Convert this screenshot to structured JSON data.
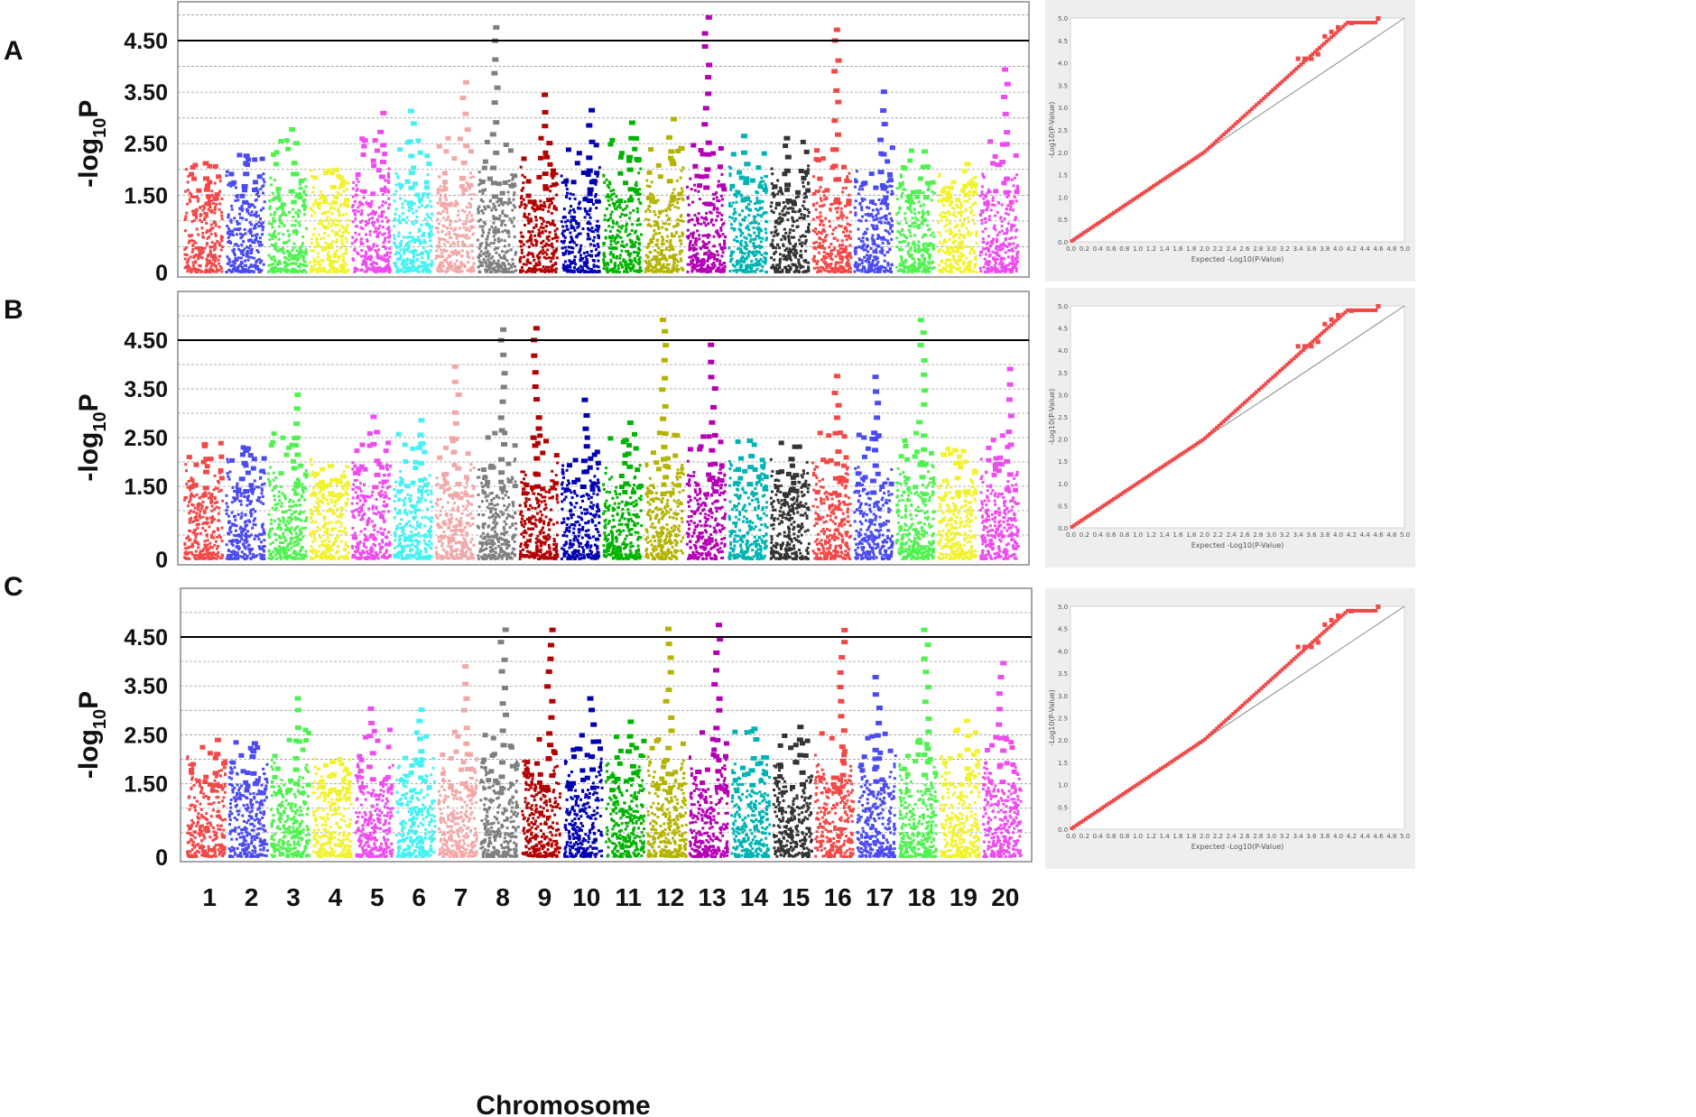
{
  "chart_data": {
    "type": "scatter",
    "panels": [
      {
        "label": "A",
        "manhattan": {
          "ylabel": "-log10P",
          "yticks": [
            "4.50",
            "3.50",
            "2.50",
            "1.50",
            "0"
          ],
          "ytick_values": [
            4.5,
            3.5,
            2.5,
            1.5,
            0
          ],
          "threshold": 4.5,
          "ylim": [
            0,
            5.2
          ]
        },
        "qq": {
          "xlabel": "Expected -Log10(P-Value)",
          "ylabel": "-Log10(P-Value)",
          "xlim": [
            0,
            5
          ],
          "ylim": [
            0,
            5
          ],
          "xticks": [
            "0.0",
            "0.2",
            "0.4",
            "0.6",
            "0.8",
            "1.0",
            "1.2",
            "1.4",
            "1.6",
            "1.8",
            "2.0",
            "2.2",
            "2.4",
            "2.6",
            "2.8",
            "3.0",
            "3.2",
            "3.4",
            "3.6",
            "3.8",
            "4.0",
            "4.2",
            "4.4",
            "4.6",
            "4.8",
            "5.0"
          ],
          "yticks": [
            "0.0",
            "0.5",
            "1.0",
            "1.5",
            "2.0",
            "2.5",
            "3.0",
            "3.5",
            "4.0",
            "4.5",
            "5.0"
          ]
        }
      },
      {
        "label": "B",
        "manhattan": {
          "ylabel": "-log10P",
          "yticks": [
            "4.50",
            "3.50",
            "2.50",
            "1.50",
            "0"
          ],
          "ytick_values": [
            4.5,
            3.5,
            2.5,
            1.5,
            0
          ],
          "threshold": 4.5,
          "ylim": [
            0,
            5.2
          ]
        },
        "qq": {
          "xlabel": "Expected -Log10(P-Value)",
          "ylabel": "-Log10(P-Value)",
          "xlim": [
            0,
            5
          ],
          "ylim": [
            0,
            5
          ],
          "xticks": [
            "0.0",
            "0.2",
            "0.4",
            "0.6",
            "0.8",
            "1.0",
            "1.2",
            "1.4",
            "1.6",
            "1.8",
            "2.0",
            "2.2",
            "2.4",
            "2.6",
            "2.8",
            "3.0",
            "3.2",
            "3.4",
            "3.6",
            "3.8",
            "4.0",
            "4.2",
            "4.4",
            "4.6",
            "4.8",
            "5.0"
          ],
          "yticks": [
            "0.0",
            "0.5",
            "1.0",
            "1.5",
            "2.0",
            "2.5",
            "3.0",
            "3.5",
            "4.0",
            "4.5",
            "5.0"
          ]
        }
      },
      {
        "label": "C",
        "manhattan": {
          "ylabel": "-log10P",
          "yticks": [
            "4.50",
            "3.50",
            "2.50",
            "1.50",
            "0"
          ],
          "ytick_values": [
            4.5,
            3.5,
            2.5,
            1.5,
            0
          ],
          "threshold": 4.5,
          "ylim": [
            0,
            5.2
          ]
        },
        "qq": {
          "xlabel": "Expected -Log10(P-Value)",
          "ylabel": "-Log10(P-Value)",
          "xlim": [
            0,
            5
          ],
          "ylim": [
            0,
            5
          ],
          "xticks": [
            "0.0",
            "0.2",
            "0.4",
            "0.6",
            "0.8",
            "1.0",
            "1.2",
            "1.4",
            "1.6",
            "1.8",
            "2.0",
            "2.2",
            "2.4",
            "2.6",
            "2.8",
            "3.0",
            "3.2",
            "3.4",
            "3.6",
            "3.8",
            "4.0",
            "4.2",
            "4.4",
            "4.6",
            "4.8",
            "5.0"
          ],
          "yticks": [
            "0.0",
            "0.5",
            "1.0",
            "1.5",
            "2.0",
            "2.5",
            "3.0",
            "3.5",
            "4.0",
            "4.5",
            "5.0"
          ]
        }
      }
    ],
    "chromosomes": [
      "1",
      "2",
      "3",
      "4",
      "5",
      "6",
      "7",
      "8",
      "9",
      "10",
      "11",
      "12",
      "13",
      "14",
      "15",
      "16",
      "17",
      "18",
      "19",
      "20"
    ],
    "chromosome_colors": [
      "#f24848",
      "#4b4bf2",
      "#4ff24f",
      "#f2f22e",
      "#ef4cef",
      "#45f2f2",
      "#f2a8a8",
      "#7f7f7f",
      "#b30000",
      "#0000b3",
      "#00b300",
      "#b3b300",
      "#b300b3",
      "#00b3b3",
      "#333333",
      "#f24848",
      "#4b4bf2",
      "#4ff24f",
      "#f2f22e",
      "#ef4cef"
    ],
    "peaks": [
      [
        2.2,
        2.3,
        2.8,
        2.0,
        3.1,
        3.2,
        3.7,
        4.8,
        3.5,
        3.2,
        2.9,
        3.0,
        5.0,
        2.7,
        2.6,
        4.8,
        3.5,
        2.4,
        2.1,
        4.0
      ],
      [
        2.4,
        2.3,
        3.4,
        2.0,
        3.0,
        2.9,
        4.0,
        4.8,
        4.8,
        3.3,
        2.8,
        5.0,
        4.4,
        2.5,
        2.4,
        3.8,
        3.8,
        5.0,
        2.3,
        3.9
      ],
      [
        2.4,
        2.4,
        3.3,
        2.0,
        3.1,
        3.1,
        3.9,
        4.7,
        4.7,
        3.3,
        2.8,
        4.7,
        4.8,
        2.7,
        2.7,
        4.7,
        3.7,
        4.7,
        2.8,
        4.0
      ]
    ],
    "xlabel": "Chromosome"
  }
}
